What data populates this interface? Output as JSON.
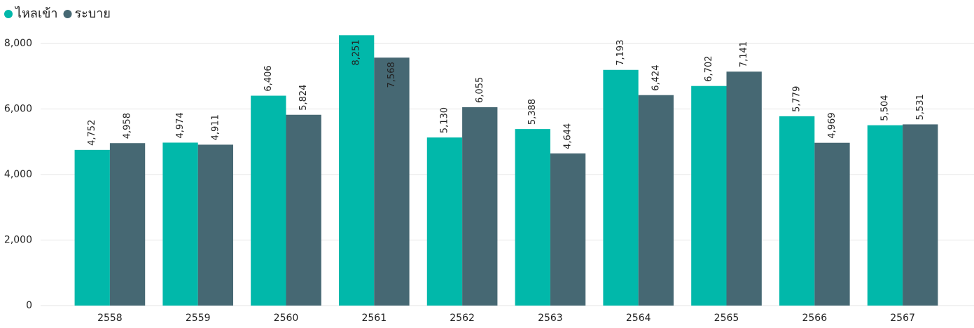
{
  "chart_data": {
    "type": "bar",
    "categories": [
      "2558",
      "2559",
      "2560",
      "2561",
      "2562",
      "2563",
      "2564",
      "2565",
      "2566",
      "2567"
    ],
    "series": [
      {
        "name": "ไหลเข้า",
        "color": "#01B8AA",
        "values": [
          4752,
          4974,
          6406,
          8251,
          5130,
          5388,
          7193,
          6702,
          5779,
          5504
        ],
        "value_labels": [
          "4,752",
          "4,974",
          "6,406",
          "8,251",
          "5,130",
          "5,388",
          "7,193",
          "6,702",
          "5,779",
          "5,504"
        ]
      },
      {
        "name": "ระบาย",
        "color": "#466873",
        "values": [
          4958,
          4911,
          5824,
          7568,
          6055,
          4644,
          6424,
          7141,
          4969,
          5531
        ],
        "value_labels": [
          "4,958",
          "4,911",
          "5,824",
          "7,568",
          "6,055",
          "4,644",
          "6,424",
          "7,141",
          "4,969",
          "5,531"
        ]
      }
    ],
    "ylim": [
      0,
      8300
    ],
    "yticks": [
      0,
      {
        "value": 2000,
        "label": "2,000"
      },
      {
        "value": 4000,
        "label": "4,000"
      },
      {
        "value": 6000,
        "label": "6,000"
      },
      {
        "value": 8000,
        "label": "8,000"
      }
    ],
    "grid": true,
    "legend": "top-left"
  }
}
